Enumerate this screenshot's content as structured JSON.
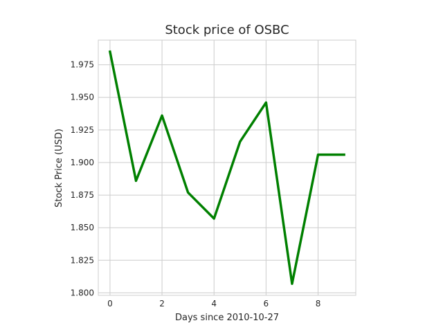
{
  "chart_data": {
    "type": "line",
    "title": "Stock price of OSBC",
    "xlabel": "Days since 2010-10-27",
    "ylabel": "Stock Price (USD)",
    "x": [
      0,
      1,
      2,
      3,
      4,
      5,
      6,
      7,
      8,
      9
    ],
    "series": [
      {
        "values": [
          1.985,
          1.886,
          1.936,
          1.877,
          1.857,
          1.916,
          1.946,
          1.807,
          1.906,
          1.906
        ],
        "color": "#008000"
      }
    ],
    "xlim": [
      -0.45,
      9.45
    ],
    "ylim": [
      1.7981,
      1.9939
    ],
    "xticks": [
      0,
      2,
      4,
      6,
      8
    ],
    "xtick_labels": [
      "0",
      "2",
      "4",
      "6",
      "8"
    ],
    "yticks": [
      1.8,
      1.825,
      1.85,
      1.875,
      1.9,
      1.925,
      1.95,
      1.975
    ],
    "ytick_labels": [
      "1.800",
      "1.825",
      "1.850",
      "1.875",
      "1.900",
      "1.925",
      "1.950",
      "1.975"
    ],
    "grid": true,
    "legend": "none"
  }
}
